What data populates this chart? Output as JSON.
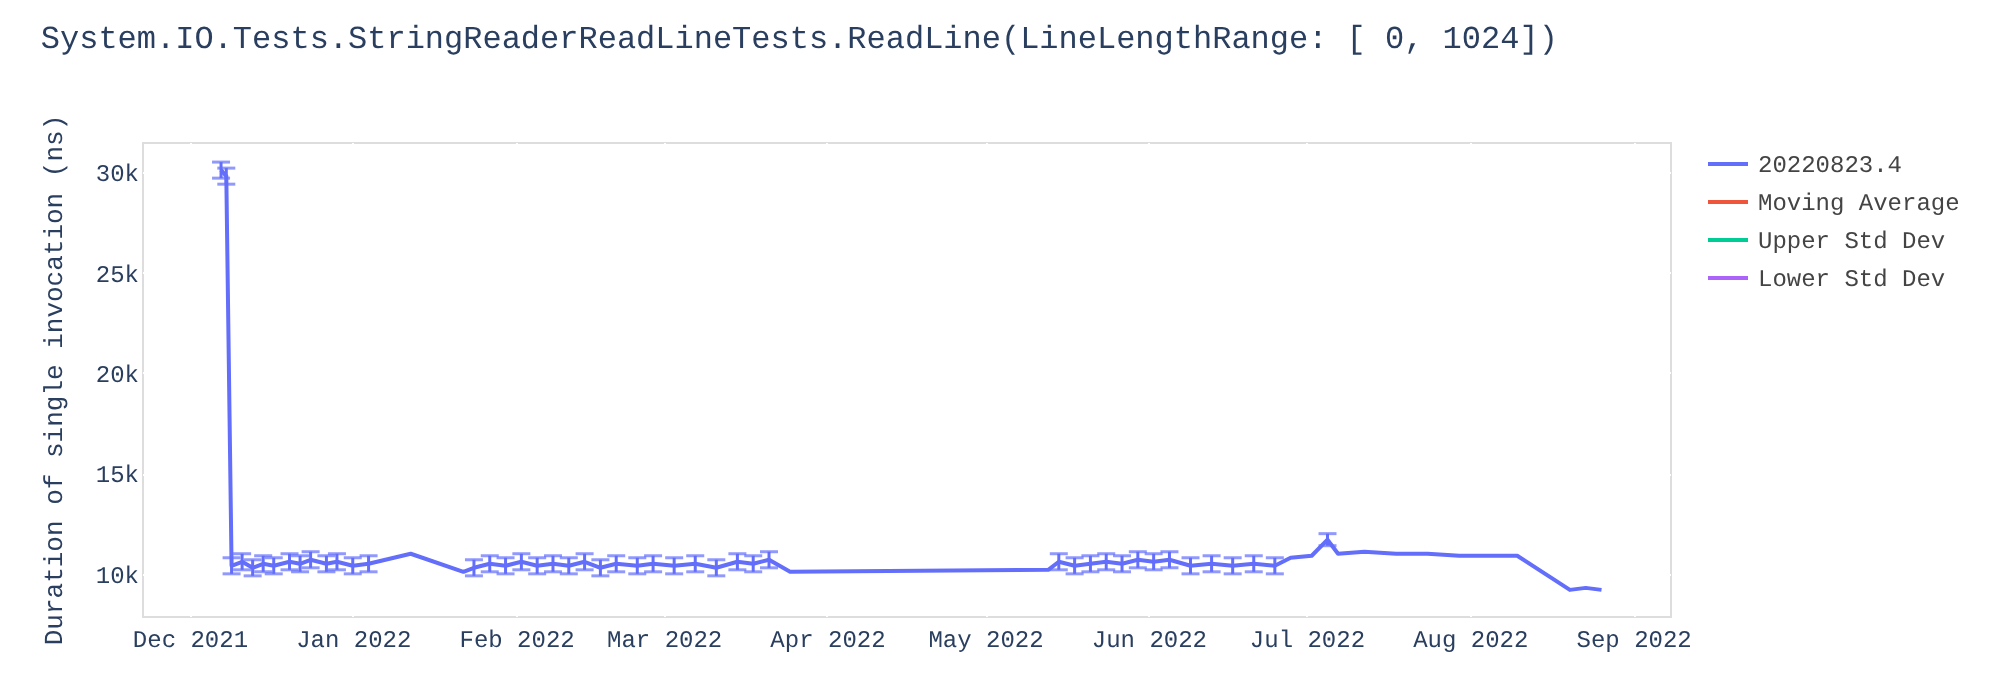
{
  "chart_data": {
    "type": "line",
    "title": "System.IO.Tests.StringReaderReadLineTests.ReadLine(LineLengthRange: [   0, 1024])",
    "ylabel": "Duration of single invocation (ns)",
    "x": [
      "2021-12-07",
      "2021-12-08",
      "2021-12-09",
      "2021-12-11",
      "2021-12-13",
      "2021-12-15",
      "2021-12-17",
      "2021-12-20",
      "2021-12-22",
      "2021-12-24",
      "2021-12-27",
      "2021-12-29",
      "2022-01-01",
      "2022-01-04",
      "2022-01-12",
      "2022-01-22",
      "2022-01-24",
      "2022-01-27",
      "2022-01-30",
      "2022-02-02",
      "2022-02-05",
      "2022-02-08",
      "2022-02-11",
      "2022-02-14",
      "2022-02-17",
      "2022-02-20",
      "2022-02-24",
      "2022-02-27",
      "2022-03-03",
      "2022-03-07",
      "2022-03-11",
      "2022-03-15",
      "2022-03-18",
      "2022-03-21",
      "2022-03-25",
      "2022-05-13",
      "2022-05-15",
      "2022-05-18",
      "2022-05-21",
      "2022-05-24",
      "2022-05-27",
      "2022-05-30",
      "2022-06-02",
      "2022-06-05",
      "2022-06-09",
      "2022-06-13",
      "2022-06-17",
      "2022-06-21",
      "2022-06-25",
      "2022-06-28",
      "2022-07-02",
      "2022-07-05",
      "2022-07-07",
      "2022-07-12",
      "2022-07-18",
      "2022-07-24",
      "2022-07-30",
      "2022-08-05",
      "2022-08-10",
      "2022-08-20",
      "2022-08-23",
      "2022-08-26"
    ],
    "series": [
      {
        "name": "20220823.4",
        "color": "#636efa",
        "values": [
          30100,
          29800,
          10400,
          10600,
          10300,
          10500,
          10400,
          10600,
          10500,
          10700,
          10500,
          10600,
          10400,
          10500,
          11000,
          10100,
          10300,
          10500,
          10400,
          10600,
          10400,
          10500,
          10400,
          10600,
          10300,
          10500,
          10400,
          10500,
          10400,
          10500,
          10300,
          10600,
          10500,
          10700,
          10100,
          10200,
          10600,
          10400,
          10500,
          10600,
          10500,
          10700,
          10600,
          10700,
          10400,
          10500,
          10400,
          10500,
          10400,
          10800,
          10900,
          11700,
          11000,
          11100,
          11000,
          11000,
          10900,
          10900,
          10900,
          9200,
          9300,
          9200
        ],
        "errors": [
          400,
          400,
          400,
          400,
          400,
          400,
          400,
          400,
          400,
          400,
          400,
          400,
          400,
          400,
          null,
          null,
          400,
          400,
          400,
          400,
          400,
          400,
          400,
          400,
          400,
          400,
          400,
          400,
          400,
          400,
          400,
          400,
          400,
          400,
          null,
          null,
          400,
          400,
          400,
          400,
          400,
          400,
          400,
          400,
          400,
          400,
          400,
          400,
          400,
          null,
          null,
          300,
          null,
          null,
          null,
          null,
          null,
          null,
          null,
          null,
          null,
          null
        ]
      },
      {
        "name": "Moving Average",
        "color": "#ef553b",
        "values": [
          null,
          null,
          null,
          null,
          null,
          null,
          null,
          null,
          null,
          null,
          null,
          null,
          null,
          null,
          null,
          null,
          null,
          null,
          null,
          null,
          null,
          null,
          null,
          null,
          null,
          null,
          null,
          null,
          null,
          null,
          null,
          null,
          null,
          null,
          null,
          null,
          null,
          null,
          null,
          null,
          null,
          null,
          null,
          null,
          null,
          null,
          null,
          null,
          null,
          null,
          null,
          null,
          null,
          null,
          null,
          null,
          null,
          null,
          null,
          null,
          null,
          null
        ]
      },
      {
        "name": "Upper Std Dev",
        "color": "#00cc96",
        "values": [
          null,
          null,
          null,
          null,
          null,
          null,
          null,
          null,
          null,
          null,
          null,
          null,
          null,
          null,
          null,
          null,
          null,
          null,
          null,
          null,
          null,
          null,
          null,
          null,
          null,
          null,
          null,
          null,
          null,
          null,
          null,
          null,
          null,
          null,
          null,
          null,
          null,
          null,
          null,
          null,
          null,
          null,
          null,
          null,
          null,
          null,
          null,
          null,
          null,
          null,
          null,
          null,
          null,
          null,
          null,
          null,
          null,
          null,
          null,
          null,
          null,
          null
        ]
      },
      {
        "name": "Lower Std Dev",
        "color": "#ab63fa",
        "values": [
          null,
          null,
          null,
          null,
          null,
          null,
          null,
          null,
          null,
          null,
          null,
          null,
          null,
          null,
          null,
          null,
          null,
          null,
          null,
          null,
          null,
          null,
          null,
          null,
          null,
          null,
          null,
          null,
          null,
          null,
          null,
          null,
          null,
          null,
          null,
          null,
          null,
          null,
          null,
          null,
          null,
          null,
          null,
          null,
          null,
          null,
          null,
          null,
          null,
          null,
          null,
          null,
          null,
          null,
          null,
          null,
          null,
          null,
          null,
          null,
          null,
          null
        ]
      }
    ],
    "xlim": [
      "2021-11-22",
      "2022-09-08"
    ],
    "xticks": [
      {
        "value": "2021-12-01",
        "label": "Dec 2021"
      },
      {
        "value": "2022-01-01",
        "label": "Jan 2022"
      },
      {
        "value": "2022-02-01",
        "label": "Feb 2022"
      },
      {
        "value": "2022-03-01",
        "label": "Mar 2022"
      },
      {
        "value": "2022-04-01",
        "label": "Apr 2022"
      },
      {
        "value": "2022-05-01",
        "label": "May 2022"
      },
      {
        "value": "2022-06-01",
        "label": "Jun 2022"
      },
      {
        "value": "2022-07-01",
        "label": "Jul 2022"
      },
      {
        "value": "2022-08-01",
        "label": "Aug 2022"
      },
      {
        "value": "2022-09-01",
        "label": "Sep 2022"
      }
    ],
    "ylim": [
      7900,
      31500
    ],
    "yticks": [
      {
        "value": 10000,
        "label": "10k"
      },
      {
        "value": 15000,
        "label": "15k"
      },
      {
        "value": 20000,
        "label": "20k"
      },
      {
        "value": 25000,
        "label": "25k"
      },
      {
        "value": 30000,
        "label": "30k"
      }
    ],
    "grid": true,
    "legend": "top right",
    "marker": "none",
    "line_style": "solid"
  }
}
